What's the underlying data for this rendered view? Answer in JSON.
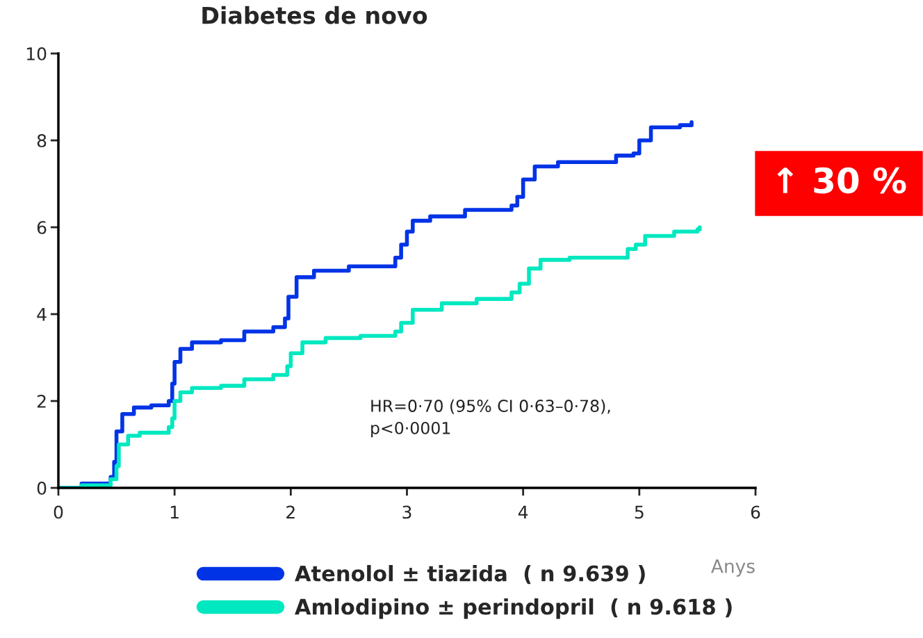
{
  "chart_data": {
    "type": "step",
    "title": "Diabetes de novo",
    "xlabel": "Anys",
    "xlim": [
      0,
      6
    ],
    "xticks": [
      0,
      1,
      2,
      3,
      4,
      5,
      6
    ],
    "ylim": [
      0,
      10
    ],
    "yticks": [
      0,
      2,
      4,
      6,
      8,
      10
    ],
    "grid": false,
    "legend": "bottom",
    "marker": "none",
    "line_style": "solid",
    "series": [
      {
        "name": "Atenolol ± tiazida  ( n 9.639 )",
        "color": "#0033e6",
        "x": [
          0,
          0.2,
          0.45,
          0.48,
          0.5,
          0.55,
          0.65,
          0.8,
          0.95,
          0.98,
          1.0,
          1.05,
          1.15,
          1.4,
          1.6,
          1.85,
          1.95,
          1.98,
          2.05,
          2.2,
          2.5,
          2.9,
          2.95,
          3.0,
          3.05,
          3.2,
          3.5,
          3.9,
          3.95,
          4.0,
          4.1,
          4.3,
          4.8,
          4.95,
          5.0,
          5.1,
          5.35,
          5.45
        ],
        "values": [
          0,
          0.1,
          0.25,
          0.6,
          1.3,
          1.7,
          1.85,
          1.9,
          2.0,
          2.4,
          2.9,
          3.2,
          3.35,
          3.4,
          3.6,
          3.7,
          3.9,
          4.4,
          4.85,
          5.0,
          5.1,
          5.3,
          5.6,
          5.9,
          6.15,
          6.25,
          6.4,
          6.5,
          6.7,
          7.1,
          7.4,
          7.5,
          7.65,
          7.7,
          8.0,
          8.3,
          8.35,
          8.42
        ]
      },
      {
        "name": "Amlodipino ± perindopril  ( n 9.618 )",
        "color": "#00e8c0",
        "x": [
          0,
          0.2,
          0.45,
          0.5,
          0.52,
          0.6,
          0.7,
          0.95,
          0.98,
          1.0,
          1.05,
          1.15,
          1.4,
          1.6,
          1.85,
          1.97,
          2.0,
          2.1,
          2.3,
          2.6,
          2.9,
          2.95,
          3.05,
          3.3,
          3.6,
          3.9,
          3.97,
          4.05,
          4.15,
          4.4,
          4.9,
          4.97,
          5.05,
          5.3,
          5.5,
          5.52
        ],
        "values": [
          0,
          0.06,
          0.2,
          0.5,
          1.0,
          1.2,
          1.27,
          1.4,
          1.6,
          2.0,
          2.2,
          2.3,
          2.35,
          2.5,
          2.6,
          2.8,
          3.1,
          3.35,
          3.45,
          3.5,
          3.6,
          3.8,
          4.1,
          4.25,
          4.35,
          4.5,
          4.7,
          5.05,
          5.25,
          5.3,
          5.5,
          5.6,
          5.8,
          5.9,
          5.95,
          6.0
        ]
      }
    ],
    "annotations": [
      "HR=0·70 (95% CI 0·63–0·78),\np<0·0001",
      "↑ 30 %"
    ]
  }
}
